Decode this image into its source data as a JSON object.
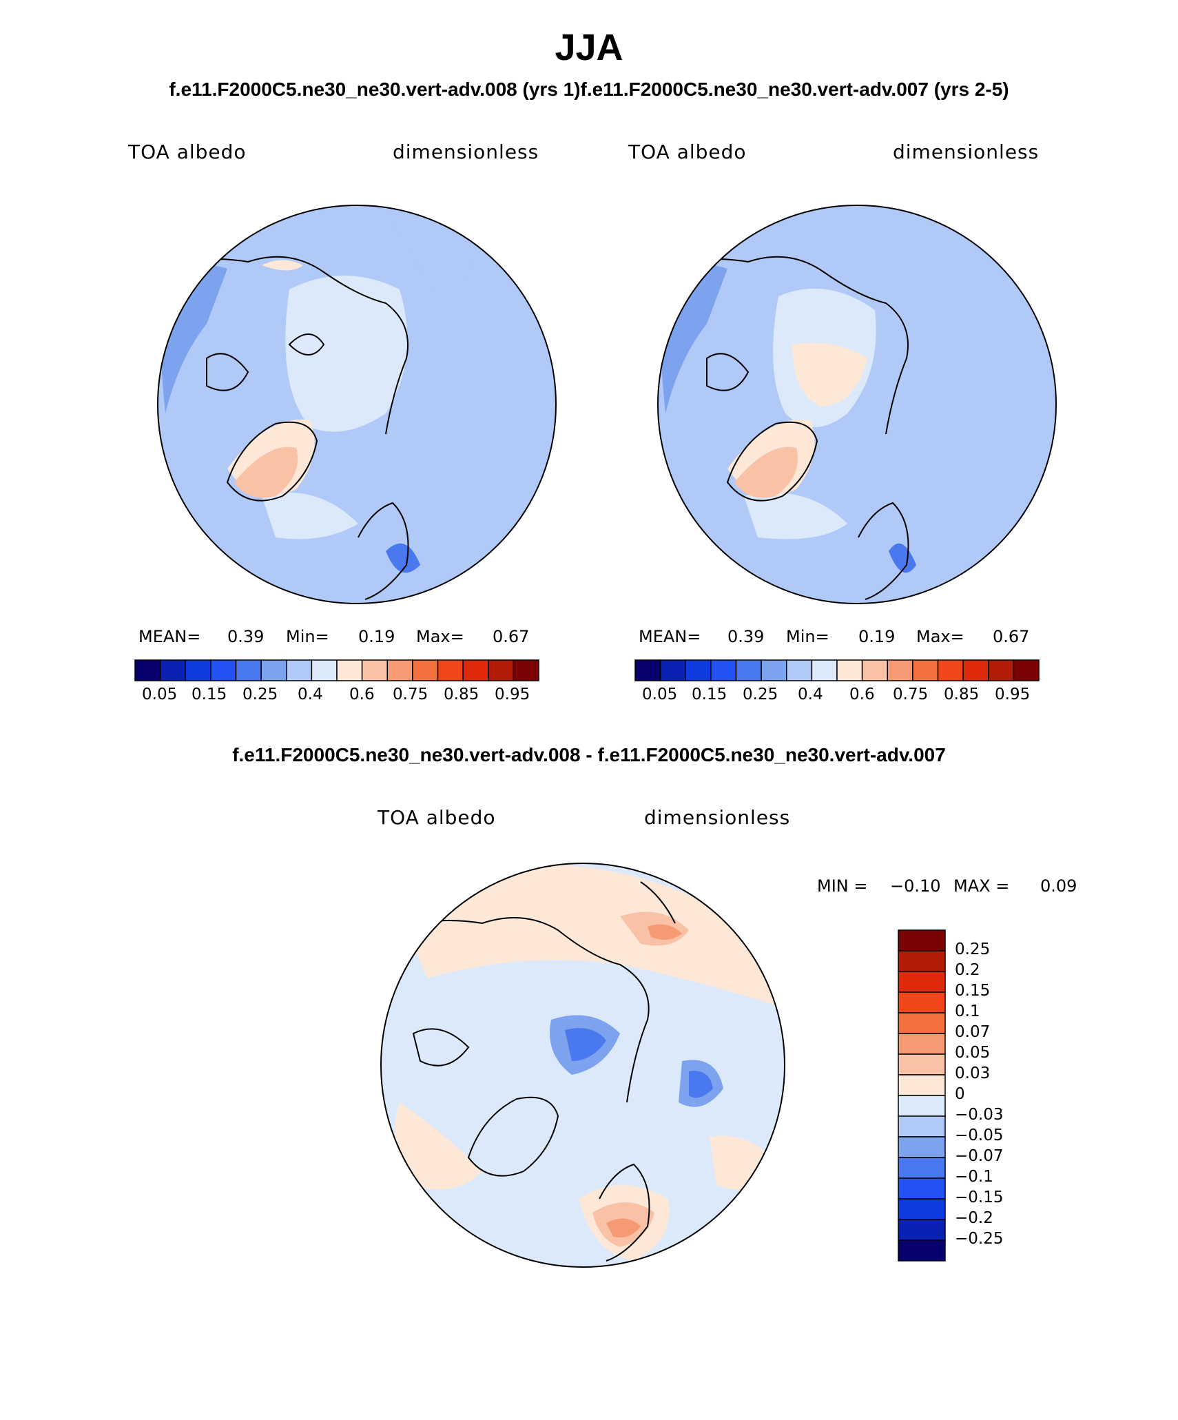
{
  "title": "JJA",
  "top_subtitle": "f.e11.F2000C5.ne30_ne30.vert-adv.008 (yrs 1)f.e11.F2000C5.ne30_ne30.vert-adv.007 (yrs 2-5)",
  "diff_subtitle": "f.e11.F2000C5.ne30_ne30.vert-adv.008 - f.e11.F2000C5.ne30_ne30.vert-adv.007",
  "panels": [
    {
      "variable": "TOA albedo",
      "units": "dimensionless",
      "mean_label": "MEAN=",
      "mean": "0.39",
      "min_label": "Min=",
      "min": "0.19",
      "max_label": "Max=",
      "max": "0.67"
    },
    {
      "variable": "TOA albedo",
      "units": "dimensionless",
      "mean_label": "MEAN=",
      "mean": "0.39",
      "min_label": "Min=",
      "min": "0.19",
      "max_label": "Max=",
      "max": "0.67"
    }
  ],
  "diff_panel": {
    "variable": "TOA albedo",
    "units": "dimensionless",
    "min_label": "MIN =",
    "min": "−0.10",
    "max_label": "MAX =",
    "max": "0.09"
  },
  "colorbar_abs": {
    "colors": [
      "#08006e",
      "#0a22b4",
      "#0d3be0",
      "#2352f5",
      "#4a78ee",
      "#7ea3ee",
      "#b0c9f6",
      "#dce9fb",
      "#fde8d8",
      "#f9c2a6",
      "#f69a74",
      "#f5703f",
      "#f4461c",
      "#df2a0c",
      "#b21c07",
      "#7c0303"
    ],
    "labels": [
      "0.05",
      "0.15",
      "0.25",
      "0.4",
      "0.6",
      "0.75",
      "0.85",
      "0.95"
    ]
  },
  "colorbar_diff": {
    "colors": [
      "#08006e",
      "#0a22b4",
      "#0d3be0",
      "#2352f5",
      "#4a78ee",
      "#7ea3ee",
      "#b0c9f6",
      "#dce9fb",
      "#fde8d8",
      "#f9c2a6",
      "#f69a74",
      "#f5703f",
      "#f4461c",
      "#df2a0c",
      "#b21c07",
      "#7c0303"
    ],
    "labels": [
      "0.25",
      "0.2",
      "0.15",
      "0.1",
      "0.07",
      "0.05",
      "0.03",
      "0",
      "−0.03",
      "−0.05",
      "−0.07",
      "−0.1",
      "−0.15",
      "−0.2",
      "−0.25"
    ]
  }
}
